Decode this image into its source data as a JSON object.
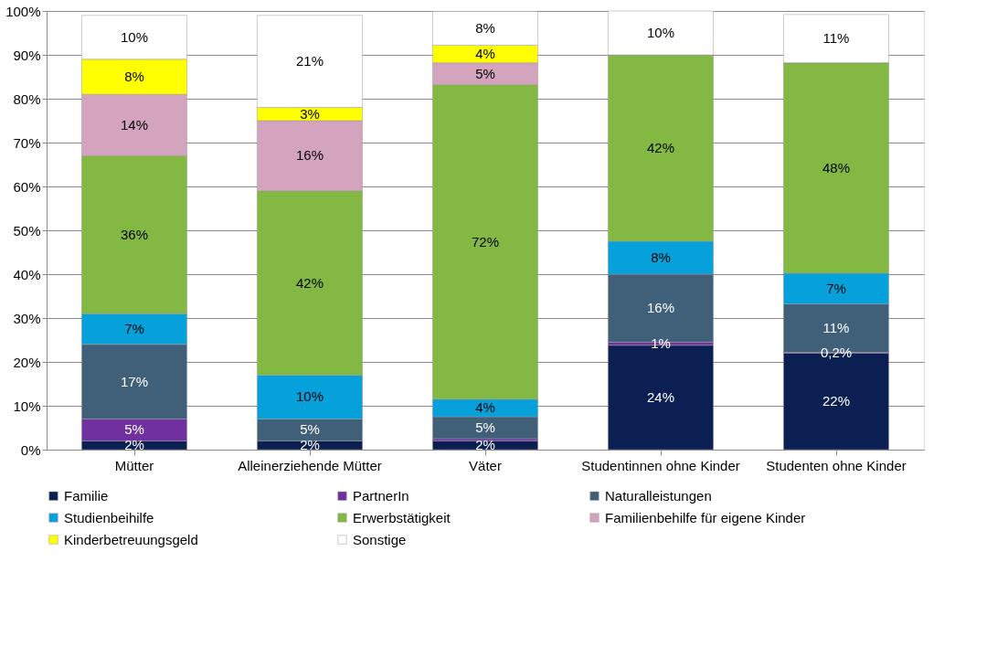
{
  "chart_data": {
    "type": "bar",
    "stacked": true,
    "categories": [
      "Mütter",
      "Alleinerziehende Mütter",
      "Väter",
      "Studentinnen ohne Kinder",
      "Studenten ohne Kinder"
    ],
    "series": [
      {
        "name": "Familie",
        "color": "#0c1f52",
        "values": [
          2,
          2,
          2,
          23.8,
          22
        ],
        "value_labels": [
          "2%",
          "2%",
          "2%",
          "24%",
          "22%"
        ]
      },
      {
        "name": "PartnerIn",
        "color": "#70309f",
        "values": [
          5,
          0,
          0.5,
          0.7,
          0.2
        ],
        "value_labels": [
          "5%",
          null,
          null,
          "1%",
          "0,2%"
        ]
      },
      {
        "name": "Naturalleistungen",
        "color": "#406079",
        "values": [
          17,
          5,
          5,
          15.5,
          11
        ],
        "value_labels": [
          "17%",
          "5%",
          "5%",
          "16%",
          "11%"
        ]
      },
      {
        "name": "Studienbeihilfe",
        "color": "#06a0da",
        "values": [
          7,
          10,
          4,
          7.5,
          7
        ],
        "value_labels": [
          "7%",
          "10%",
          "4%",
          "8%",
          "7%"
        ]
      },
      {
        "name": "Erwerbstätigkeit",
        "color": "#83b843",
        "values": [
          36,
          42,
          71.7,
          42.5,
          48
        ],
        "value_labels": [
          "36%",
          "42%",
          "72%",
          "42%",
          "48%"
        ]
      },
      {
        "name": "Familienbehilfe für eigene Kinder",
        "color": "#d4a3bd",
        "values": [
          14,
          16,
          5,
          0,
          0
        ],
        "value_labels": [
          "14%",
          "16%",
          "5%",
          null,
          null
        ]
      },
      {
        "name": "Kinderbetreuungsgeld",
        "color": "#ffff00",
        "values": [
          8,
          3,
          4,
          0,
          0
        ],
        "value_labels": [
          "8%",
          "3%",
          "4%",
          null,
          null
        ]
      },
      {
        "name": "Sonstige",
        "color": "#ffffff",
        "values": [
          10,
          21,
          7.7,
          10,
          11
        ],
        "value_labels": [
          "10%",
          "21%",
          "8%",
          "10%",
          "11%"
        ]
      }
    ],
    "ylim": [
      0,
      100
    ],
    "yticks": [
      {
        "value": 0,
        "label": "0%"
      },
      {
        "value": 10,
        "label": "10%"
      },
      {
        "value": 20,
        "label": "20%"
      },
      {
        "value": 30,
        "label": "30%"
      },
      {
        "value": 40,
        "label": "40%"
      },
      {
        "value": 50,
        "label": "50%"
      },
      {
        "value": 60,
        "label": "60%"
      },
      {
        "value": 70,
        "label": "70%"
      },
      {
        "value": 80,
        "label": "80%"
      },
      {
        "value": 90,
        "label": "90%"
      },
      {
        "value": 100,
        "label": "100%"
      }
    ],
    "grid": "y",
    "legend": "bottom"
  }
}
